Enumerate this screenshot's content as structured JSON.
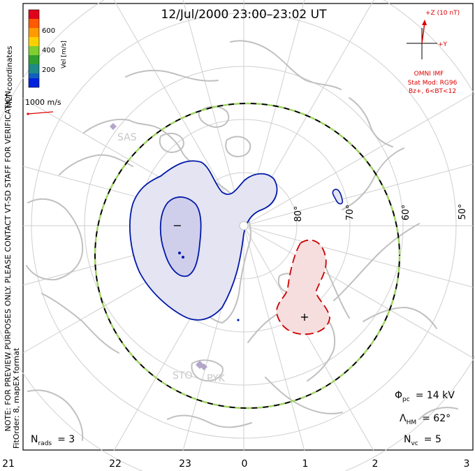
{
  "header": {
    "title": "12/Jul/2000 23:00–23:02 UT"
  },
  "velocity_scale": {
    "label": "Vel [m/s]",
    "ticks": [
      "600",
      "400",
      "200"
    ],
    "colors": [
      "#e0001a",
      "#ff5a00",
      "#ff9a00",
      "#ffd000",
      "#7fcf2f",
      "#2fa02f",
      "#1f8a8a",
      "#1060c0",
      "#0020e0"
    ]
  },
  "coords_label": "MLT coordinates",
  "preview_note": "NOTE: FOR PREVIEW PURPOSES ONLY. PLEASE CONTACT VT-SD STAFF FOR VERIFICATION.",
  "fit_note": "FitOrder: 8, mapEX format",
  "vector_scale": {
    "label": "1000 m/s"
  },
  "imf": {
    "z_label": "+Z (10 nT)",
    "y_label": "+Y",
    "source": "OMNI IMF",
    "model_line1": "Stat Mod: RG96",
    "model_line2": "Bz+, 6<BT<12",
    "color": "#dd0000"
  },
  "latitude_labels": [
    "80°",
    "70°",
    "60°",
    "50°"
  ],
  "radar_labels": [
    "SAS",
    "STO",
    "PYK"
  ],
  "cell_signs": {
    "negative": "−",
    "positive": "+"
  },
  "stats": {
    "phi_pc_symbol": "Φ",
    "phi_pc_sub": "pc",
    "phi_pc_value": "= 14 kV",
    "lambda_symbol": "Λ",
    "lambda_sub": "HM",
    "lambda_value": "= 62°",
    "nrads_symbol": "N",
    "nrads_sub": "rads",
    "nrads_value": "= 3",
    "nvc_symbol": "N",
    "nvc_sub": "vc",
    "nvc_value": "= 5"
  },
  "mlt_axis": [
    "21",
    "22",
    "23",
    "0",
    "1",
    "2",
    "3"
  ],
  "colors": {
    "frame": "#000000",
    "coast": "#c0c0c0",
    "grid": "#cfcfcf",
    "negative_cell_line": "#0018a8",
    "negative_cell_fill": "#e4e4f2",
    "negative_core_fill": "#cfcfec",
    "positive_cell_line": "#cc0000",
    "positive_cell_fill": "#f6dede",
    "boundary_green": "#9fd65f"
  }
}
